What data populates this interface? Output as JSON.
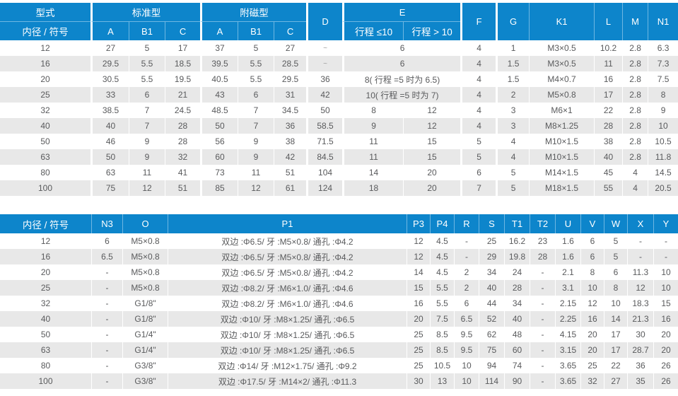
{
  "colors": {
    "header_blue": "#0d85cb",
    "stripe_gray": "#e8e8e8",
    "text_gray": "#595a5c"
  },
  "table1": {
    "header": {
      "type": "型式",
      "bore": "内径 / 符号",
      "standard": "标准型",
      "magnet": "附磁型",
      "a": "A",
      "b1": "B1",
      "c": "C",
      "d": "D",
      "e": "E",
      "e_le": "行程 ≤10",
      "e_gt": "行程 > 10",
      "f": "F",
      "g": "G",
      "k1": "K1",
      "l": "L",
      "m": "M",
      "n1": "N1"
    },
    "rows": [
      [
        "12",
        "27",
        "5",
        "17",
        "37",
        "5",
        "27",
        "~",
        "6",
        null,
        "4",
        "1",
        "M3×0.5",
        "10.2",
        "2.8",
        "6.3"
      ],
      [
        "16",
        "29.5",
        "5.5",
        "18.5",
        "39.5",
        "5.5",
        "28.5",
        "~",
        "6",
        null,
        "4",
        "1.5",
        "M3×0.5",
        "11",
        "2.8",
        "7.3"
      ],
      [
        "20",
        "30.5",
        "5.5",
        "19.5",
        "40.5",
        "5.5",
        "29.5",
        "36",
        "8( 行程 =5 时为 6.5)",
        null,
        "4",
        "1.5",
        "M4×0.7",
        "16",
        "2.8",
        "7.5"
      ],
      [
        "25",
        "33",
        "6",
        "21",
        "43",
        "6",
        "31",
        "42",
        "10( 行程 =5 时为 7)",
        null,
        "4",
        "2",
        "M5×0.8",
        "17",
        "2.8",
        "8"
      ],
      [
        "32",
        "38.5",
        "7",
        "24.5",
        "48.5",
        "7",
        "34.5",
        "50",
        "8",
        "12",
        "4",
        "3",
        "M6×1",
        "22",
        "2.8",
        "9"
      ],
      [
        "40",
        "40",
        "7",
        "28",
        "50",
        "7",
        "36",
        "58.5",
        "9",
        "12",
        "4",
        "3",
        "M8×1.25",
        "28",
        "2.8",
        "10"
      ],
      [
        "50",
        "46",
        "9",
        "28",
        "56",
        "9",
        "38",
        "71.5",
        "11",
        "15",
        "5",
        "4",
        "M10×1.5",
        "38",
        "2.8",
        "10.5"
      ],
      [
        "63",
        "50",
        "9",
        "32",
        "60",
        "9",
        "42",
        "84.5",
        "11",
        "15",
        "5",
        "4",
        "M10×1.5",
        "40",
        "2.8",
        "11.8"
      ],
      [
        "80",
        "63",
        "11",
        "41",
        "73",
        "11",
        "51",
        "104",
        "14",
        "20",
        "6",
        "5",
        "M14×1.5",
        "45",
        "4",
        "14.5"
      ],
      [
        "100",
        "75",
        "12",
        "51",
        "85",
        "12",
        "61",
        "124",
        "18",
        "20",
        "7",
        "5",
        "M18×1.5",
        "55",
        "4",
        "20.5"
      ]
    ]
  },
  "table2": {
    "header": [
      "内径 / 符号",
      "N3",
      "O",
      "P1",
      "P3",
      "P4",
      "R",
      "S",
      "T1",
      "T2",
      "U",
      "V",
      "W",
      "X",
      "Y"
    ],
    "rows": [
      [
        "12",
        "6",
        "M5×0.8",
        "双边 :Φ6.5/ 牙 :M5×0.8/ 通孔 :Φ4.2",
        "12",
        "4.5",
        "-",
        "25",
        "16.2",
        "23",
        "1.6",
        "6",
        "5",
        "-",
        "-"
      ],
      [
        "16",
        "6.5",
        "M5×0.8",
        "双边 :Φ6.5/ 牙 :M5×0.8/ 通孔 :Φ4.2",
        "12",
        "4.5",
        "-",
        "29",
        "19.8",
        "28",
        "1.6",
        "6",
        "5",
        "-",
        "-"
      ],
      [
        "20",
        "-",
        "M5×0.8",
        "双边 :Φ6.5/ 牙 :M5×0.8/ 通孔 :Φ4.2",
        "14",
        "4.5",
        "2",
        "34",
        "24",
        "-",
        "2.1",
        "8",
        "6",
        "11.3",
        "10"
      ],
      [
        "25",
        "-",
        "M5×0.8",
        "双边 :Φ8.2/ 牙 :M6×1.0/ 通孔 :Φ4.6",
        "15",
        "5.5",
        "2",
        "40",
        "28",
        "-",
        "3.1",
        "10",
        "8",
        "12",
        "10"
      ],
      [
        "32",
        "-",
        "G1/8\"",
        "双边 :Φ8.2/ 牙 :M6×1.0/ 通孔 :Φ4.6",
        "16",
        "5.5",
        "6",
        "44",
        "34",
        "-",
        "2.15",
        "12",
        "10",
        "18.3",
        "15"
      ],
      [
        "40",
        "-",
        "G1/8\"",
        "双边 :Φ10/ 牙 :M8×1.25/ 通孔 :Φ6.5",
        "20",
        "7.5",
        "6.5",
        "52",
        "40",
        "-",
        "2.25",
        "16",
        "14",
        "21.3",
        "16"
      ],
      [
        "50",
        "-",
        "G1/4\"",
        "双边 :Φ10/ 牙 :M8×1.25/ 通孔 :Φ6.5",
        "25",
        "8.5",
        "9.5",
        "62",
        "48",
        "-",
        "4.15",
        "20",
        "17",
        "30",
        "20"
      ],
      [
        "63",
        "-",
        "G1/4\"",
        "双边 :Φ10/ 牙 :M8×1.25/ 通孔 :Φ6.5",
        "25",
        "8.5",
        "9.5",
        "75",
        "60",
        "-",
        "3.15",
        "20",
        "17",
        "28.7",
        "20"
      ],
      [
        "80",
        "-",
        "G3/8\"",
        "双边 :Φ14/ 牙 :M12×1.75/ 通孔 :Φ9.2",
        "25",
        "10.5",
        "10",
        "94",
        "74",
        "-",
        "3.65",
        "25",
        "22",
        "36",
        "26"
      ],
      [
        "100",
        "-",
        "G3/8\"",
        "双边 :Φ17.5/ 牙 :M14×2/ 通孔 :Φ11.3",
        "30",
        "13",
        "10",
        "114",
        "90",
        "-",
        "3.65",
        "32",
        "27",
        "35",
        "26"
      ]
    ]
  }
}
